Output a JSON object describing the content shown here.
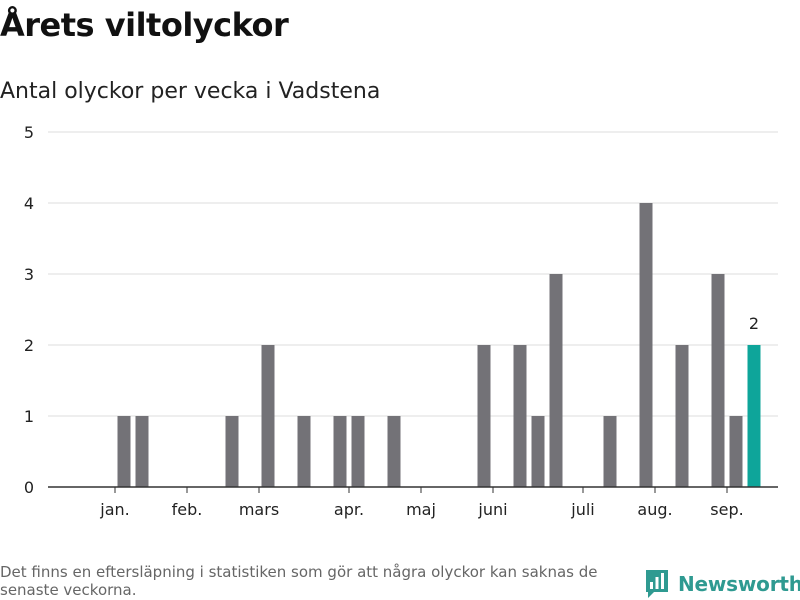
{
  "title": "Årets viltolyckor",
  "subtitle": "Antal olyckor per vecka i Vadstena",
  "footnote": "Det finns en eftersläpning i statistiken som gör att några olyckor kan saknas de senaste veckorna.",
  "brand": {
    "name": "Newsworthy",
    "icon": "newsworthy-logo-icon",
    "color": "#2f9a91"
  },
  "colors": {
    "bar": "#737277",
    "highlight": "#0ea59a",
    "grid": "#dddddd",
    "axis": "#333333"
  },
  "chart_data": {
    "type": "bar",
    "title": "Antal olyckor per vecka i Vadstena",
    "xlabel": "",
    "ylabel": "",
    "ylim": [
      0,
      5
    ],
    "yticks": [
      0,
      1,
      2,
      3,
      4,
      5
    ],
    "grid": true,
    "x": [
      1,
      2,
      3,
      4,
      5,
      6,
      7,
      8,
      9,
      10,
      11,
      12,
      13,
      14,
      15,
      16,
      17,
      18,
      19,
      20,
      21,
      22,
      23,
      24,
      25,
      26,
      27,
      28,
      29,
      30,
      31,
      32,
      33,
      34,
      35,
      36,
      37,
      38,
      39
    ],
    "values": [
      0,
      0,
      0,
      1,
      1,
      0,
      0,
      0,
      0,
      1,
      0,
      2,
      0,
      1,
      0,
      1,
      1,
      0,
      1,
      0,
      0,
      0,
      0,
      2,
      0,
      2,
      1,
      3,
      0,
      0,
      1,
      0,
      4,
      0,
      2,
      0,
      3,
      1,
      2
    ],
    "highlight_index": 38,
    "highlight_label": "2",
    "month_ticks": [
      {
        "label": "jan.",
        "week": 3.5
      },
      {
        "label": "feb.",
        "week": 7.5
      },
      {
        "label": "mars",
        "week": 11.5
      },
      {
        "label": "apr.",
        "week": 16.5
      },
      {
        "label": "maj",
        "week": 20.5
      },
      {
        "label": "juni",
        "week": 24.5
      },
      {
        "label": "juli",
        "week": 29.5
      },
      {
        "label": "aug.",
        "week": 33.5
      },
      {
        "label": "sep.",
        "week": 37.5
      }
    ]
  }
}
